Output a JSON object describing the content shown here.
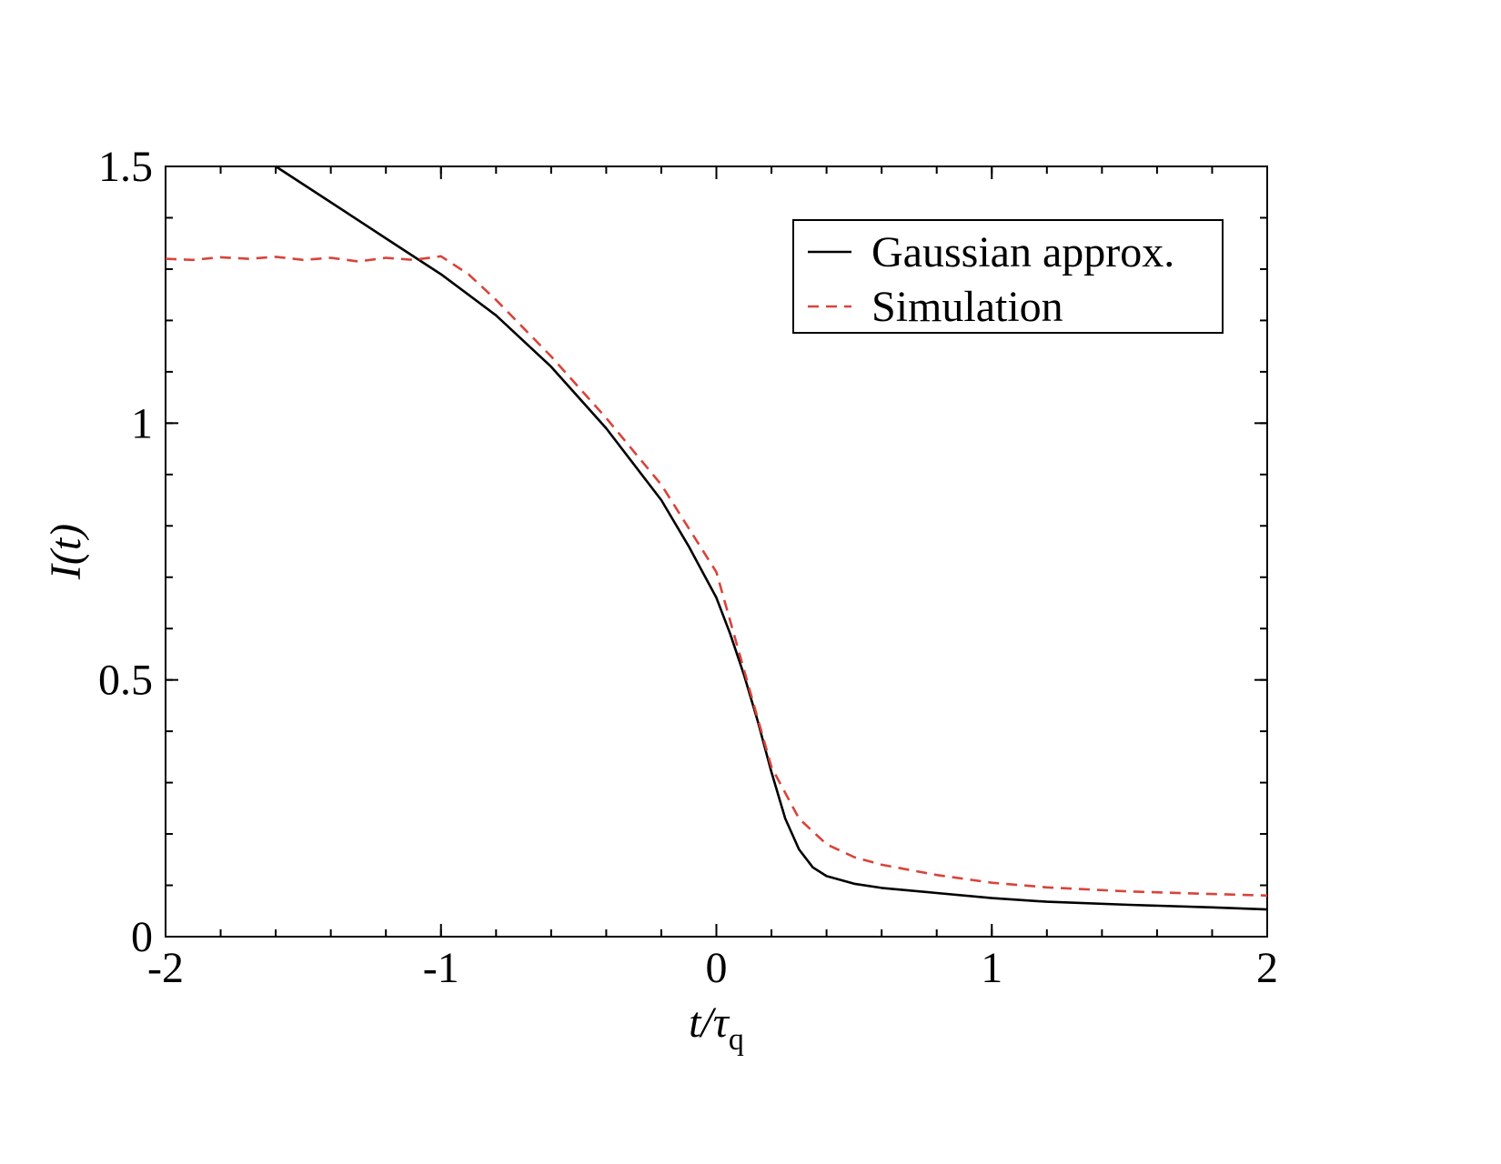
{
  "chart_data": {
    "type": "line",
    "title": "",
    "xlabel": {
      "main": "t/τ",
      "subscript": "q"
    },
    "ylabel": "I(t)",
    "xlim": [
      -2,
      2
    ],
    "ylim": [
      0,
      1.5
    ],
    "grid": false,
    "legend_position": "top-right",
    "x_ticks": [
      {
        "value": -2,
        "label": "-2"
      },
      {
        "value": -1,
        "label": "-1"
      },
      {
        "value": 0,
        "label": "0"
      },
      {
        "value": 1,
        "label": "1"
      },
      {
        "value": 2,
        "label": "2"
      }
    ],
    "y_ticks": [
      {
        "value": 0,
        "label": "0"
      },
      {
        "value": 0.5,
        "label": "0.5"
      },
      {
        "value": 1,
        "label": "1"
      },
      {
        "value": 1.5,
        "label": "1.5"
      }
    ],
    "x_minor_step": 0.2,
    "y_minor_step": 0.1,
    "series": [
      {
        "name": "Gaussian approx.",
        "color": "#000000",
        "style": "solid",
        "x": [
          -1.6,
          -1.4,
          -1.2,
          -1.0,
          -0.8,
          -0.6,
          -0.4,
          -0.2,
          -0.1,
          0.0,
          0.05,
          0.1,
          0.15,
          0.2,
          0.25,
          0.3,
          0.35,
          0.4,
          0.5,
          0.6,
          0.8,
          1.0,
          1.2,
          1.5,
          1.8,
          2.0
        ],
        "y": [
          1.5,
          1.43,
          1.36,
          1.29,
          1.21,
          1.11,
          0.99,
          0.85,
          0.76,
          0.66,
          0.59,
          0.51,
          0.42,
          0.32,
          0.23,
          0.17,
          0.135,
          0.118,
          0.103,
          0.095,
          0.085,
          0.075,
          0.068,
          0.062,
          0.057,
          0.053
        ]
      },
      {
        "name": "Simulation",
        "color": "#d9433a",
        "style": "dashed",
        "x": [
          -2.0,
          -1.9,
          -1.8,
          -1.7,
          -1.6,
          -1.5,
          -1.4,
          -1.3,
          -1.2,
          -1.1,
          -1.0,
          -0.9,
          -0.8,
          -0.6,
          -0.4,
          -0.2,
          0.0,
          0.1,
          0.2,
          0.3,
          0.4,
          0.5,
          0.6,
          0.8,
          1.0,
          1.2,
          1.5,
          1.8,
          2.0
        ],
        "y": [
          1.32,
          1.318,
          1.323,
          1.32,
          1.324,
          1.318,
          1.322,
          1.315,
          1.322,
          1.318,
          1.325,
          1.29,
          1.24,
          1.13,
          1.01,
          0.88,
          0.71,
          0.52,
          0.33,
          0.23,
          0.18,
          0.155,
          0.14,
          0.12,
          0.105,
          0.096,
          0.088,
          0.083,
          0.08
        ]
      }
    ]
  }
}
